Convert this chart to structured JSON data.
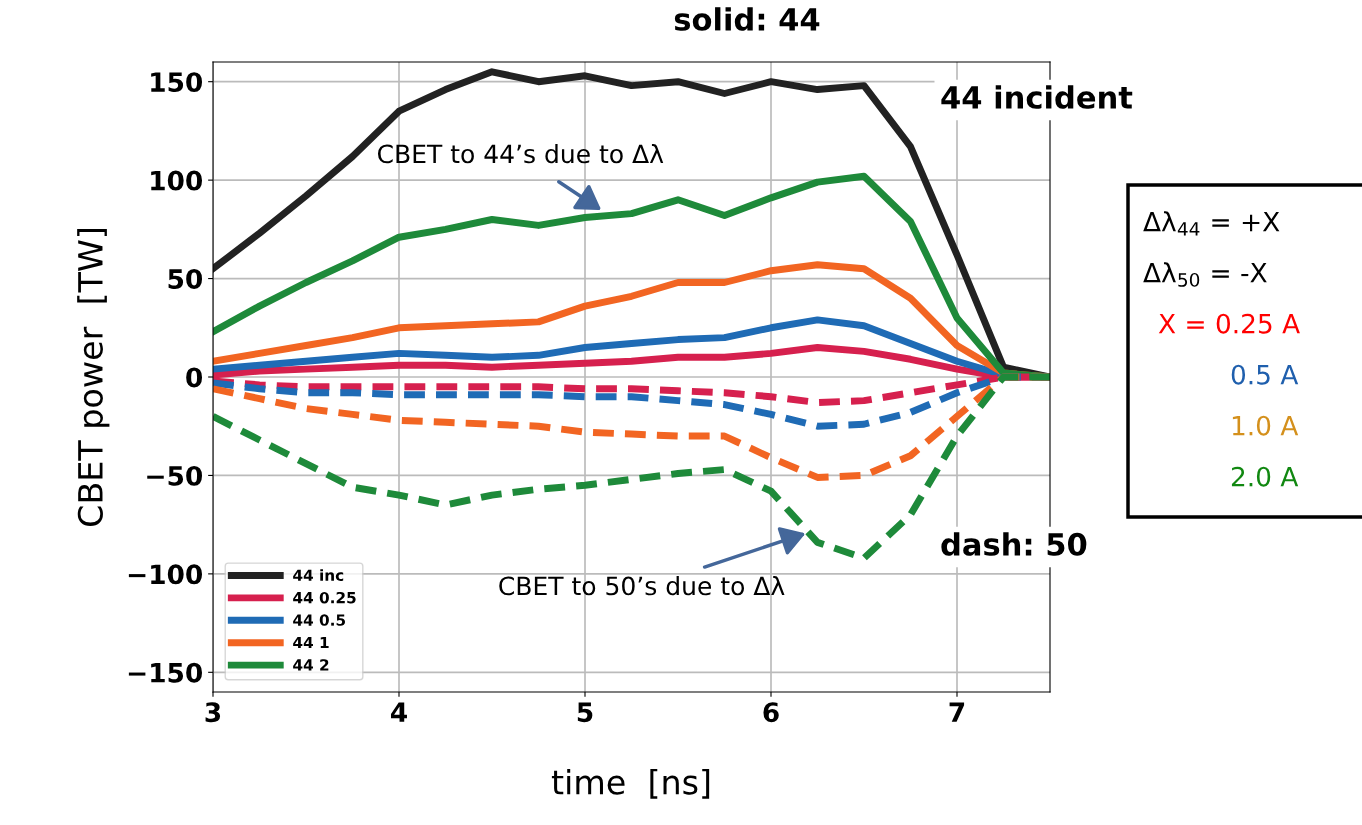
{
  "chart_data": {
    "type": "line",
    "title": "solid: 44",
    "xlabel": "time  [ns]",
    "ylabel": "CBET power  [TW]",
    "x": [
      3,
      3.25,
      3.5,
      3.75,
      4,
      4.25,
      4.5,
      4.75,
      5,
      5.25,
      5.5,
      5.75,
      6,
      6.25,
      6.5,
      6.75,
      7,
      7.25,
      7.5
    ],
    "series": [
      {
        "name": "44 inc",
        "color": "#222222",
        "line_style": "solid",
        "values": [
          55,
          73,
          92,
          112,
          135,
          146,
          155,
          150,
          153,
          148,
          150,
          144,
          150,
          146,
          148,
          117,
          62,
          5,
          0
        ]
      },
      {
        "name": "44 0.25",
        "color": "#d6204e",
        "line_style": "solid",
        "values": [
          1,
          3,
          4,
          5,
          6,
          6,
          5,
          6,
          7,
          8,
          10,
          10,
          12,
          15,
          13,
          9,
          4,
          0,
          0
        ]
      },
      {
        "name": "44 0.5",
        "color": "#1f6bb5",
        "line_style": "solid",
        "values": [
          4,
          6,
          8,
          10,
          12,
          11,
          10,
          11,
          15,
          17,
          19,
          20,
          25,
          29,
          26,
          17,
          8,
          1,
          0
        ]
      },
      {
        "name": "44 1",
        "color": "#f26522",
        "line_style": "solid",
        "values": [
          8,
          12,
          16,
          20,
          25,
          26,
          27,
          28,
          36,
          41,
          48,
          48,
          54,
          57,
          55,
          40,
          16,
          2,
          0
        ]
      },
      {
        "name": "44 2",
        "color": "#1e8a3a",
        "line_style": "solid",
        "values": [
          23,
          36,
          48,
          59,
          71,
          75,
          80,
          77,
          81,
          83,
          90,
          82,
          91,
          99,
          102,
          79,
          30,
          2,
          0
        ]
      },
      {
        "color": "#d6204e",
        "line_style": "dashed",
        "values": [
          -2,
          -4,
          -5,
          -5,
          -5,
          -5,
          -5,
          -5,
          -6,
          -6,
          -7,
          -8,
          -10,
          -13,
          -12,
          -8,
          -4,
          0,
          0
        ]
      },
      {
        "color": "#1f6bb5",
        "line_style": "dashed",
        "values": [
          -3,
          -6,
          -8,
          -8,
          -9,
          -9,
          -9,
          -9,
          -10,
          -10,
          -12,
          -14,
          -19,
          -25,
          -24,
          -18,
          -8,
          0,
          0
        ]
      },
      {
        "color": "#f26522",
        "line_style": "dashed",
        "values": [
          -6,
          -11,
          -16,
          -19,
          -22,
          -23,
          -24,
          -25,
          -28,
          -29,
          -30,
          -30,
          -41,
          -51,
          -50,
          -40,
          -20,
          0,
          0
        ]
      },
      {
        "color": "#1e8a3a",
        "line_style": "dashed",
        "values": [
          -20,
          -32,
          -44,
          -56,
          -60,
          -65,
          -60,
          -57,
          -55,
          -52,
          -49,
          -47,
          -58,
          -84,
          -92,
          -70,
          -30,
          0,
          0
        ]
      }
    ],
    "xlim": [
      3,
      7.5
    ],
    "xticks": [
      3,
      4,
      5,
      6,
      7
    ],
    "ylim": [
      -160,
      160
    ],
    "yticks": [
      {
        "value": -150,
        "label": "−150"
      },
      {
        "value": -100,
        "label": "−100"
      },
      {
        "value": -50,
        "label": "−50"
      },
      0,
      50,
      100,
      150
    ],
    "grid": true,
    "legend": "bottom left",
    "marker": "none",
    "annotations": [
      {
        "text": "CBET to 44’s due to Δλ",
        "x": 5.1,
        "y": 84
      },
      {
        "text": "CBET to 50’s due to Δλ",
        "x": 6.2,
        "y": -79
      },
      "44 incident",
      "dash: 50",
      "Δλ$_{44}$ = +X",
      "Δλ$_{50}$ = -X",
      "X = 0.25 A",
      "0.5 A",
      "1.0 A",
      "2.0 A"
    ]
  }
}
